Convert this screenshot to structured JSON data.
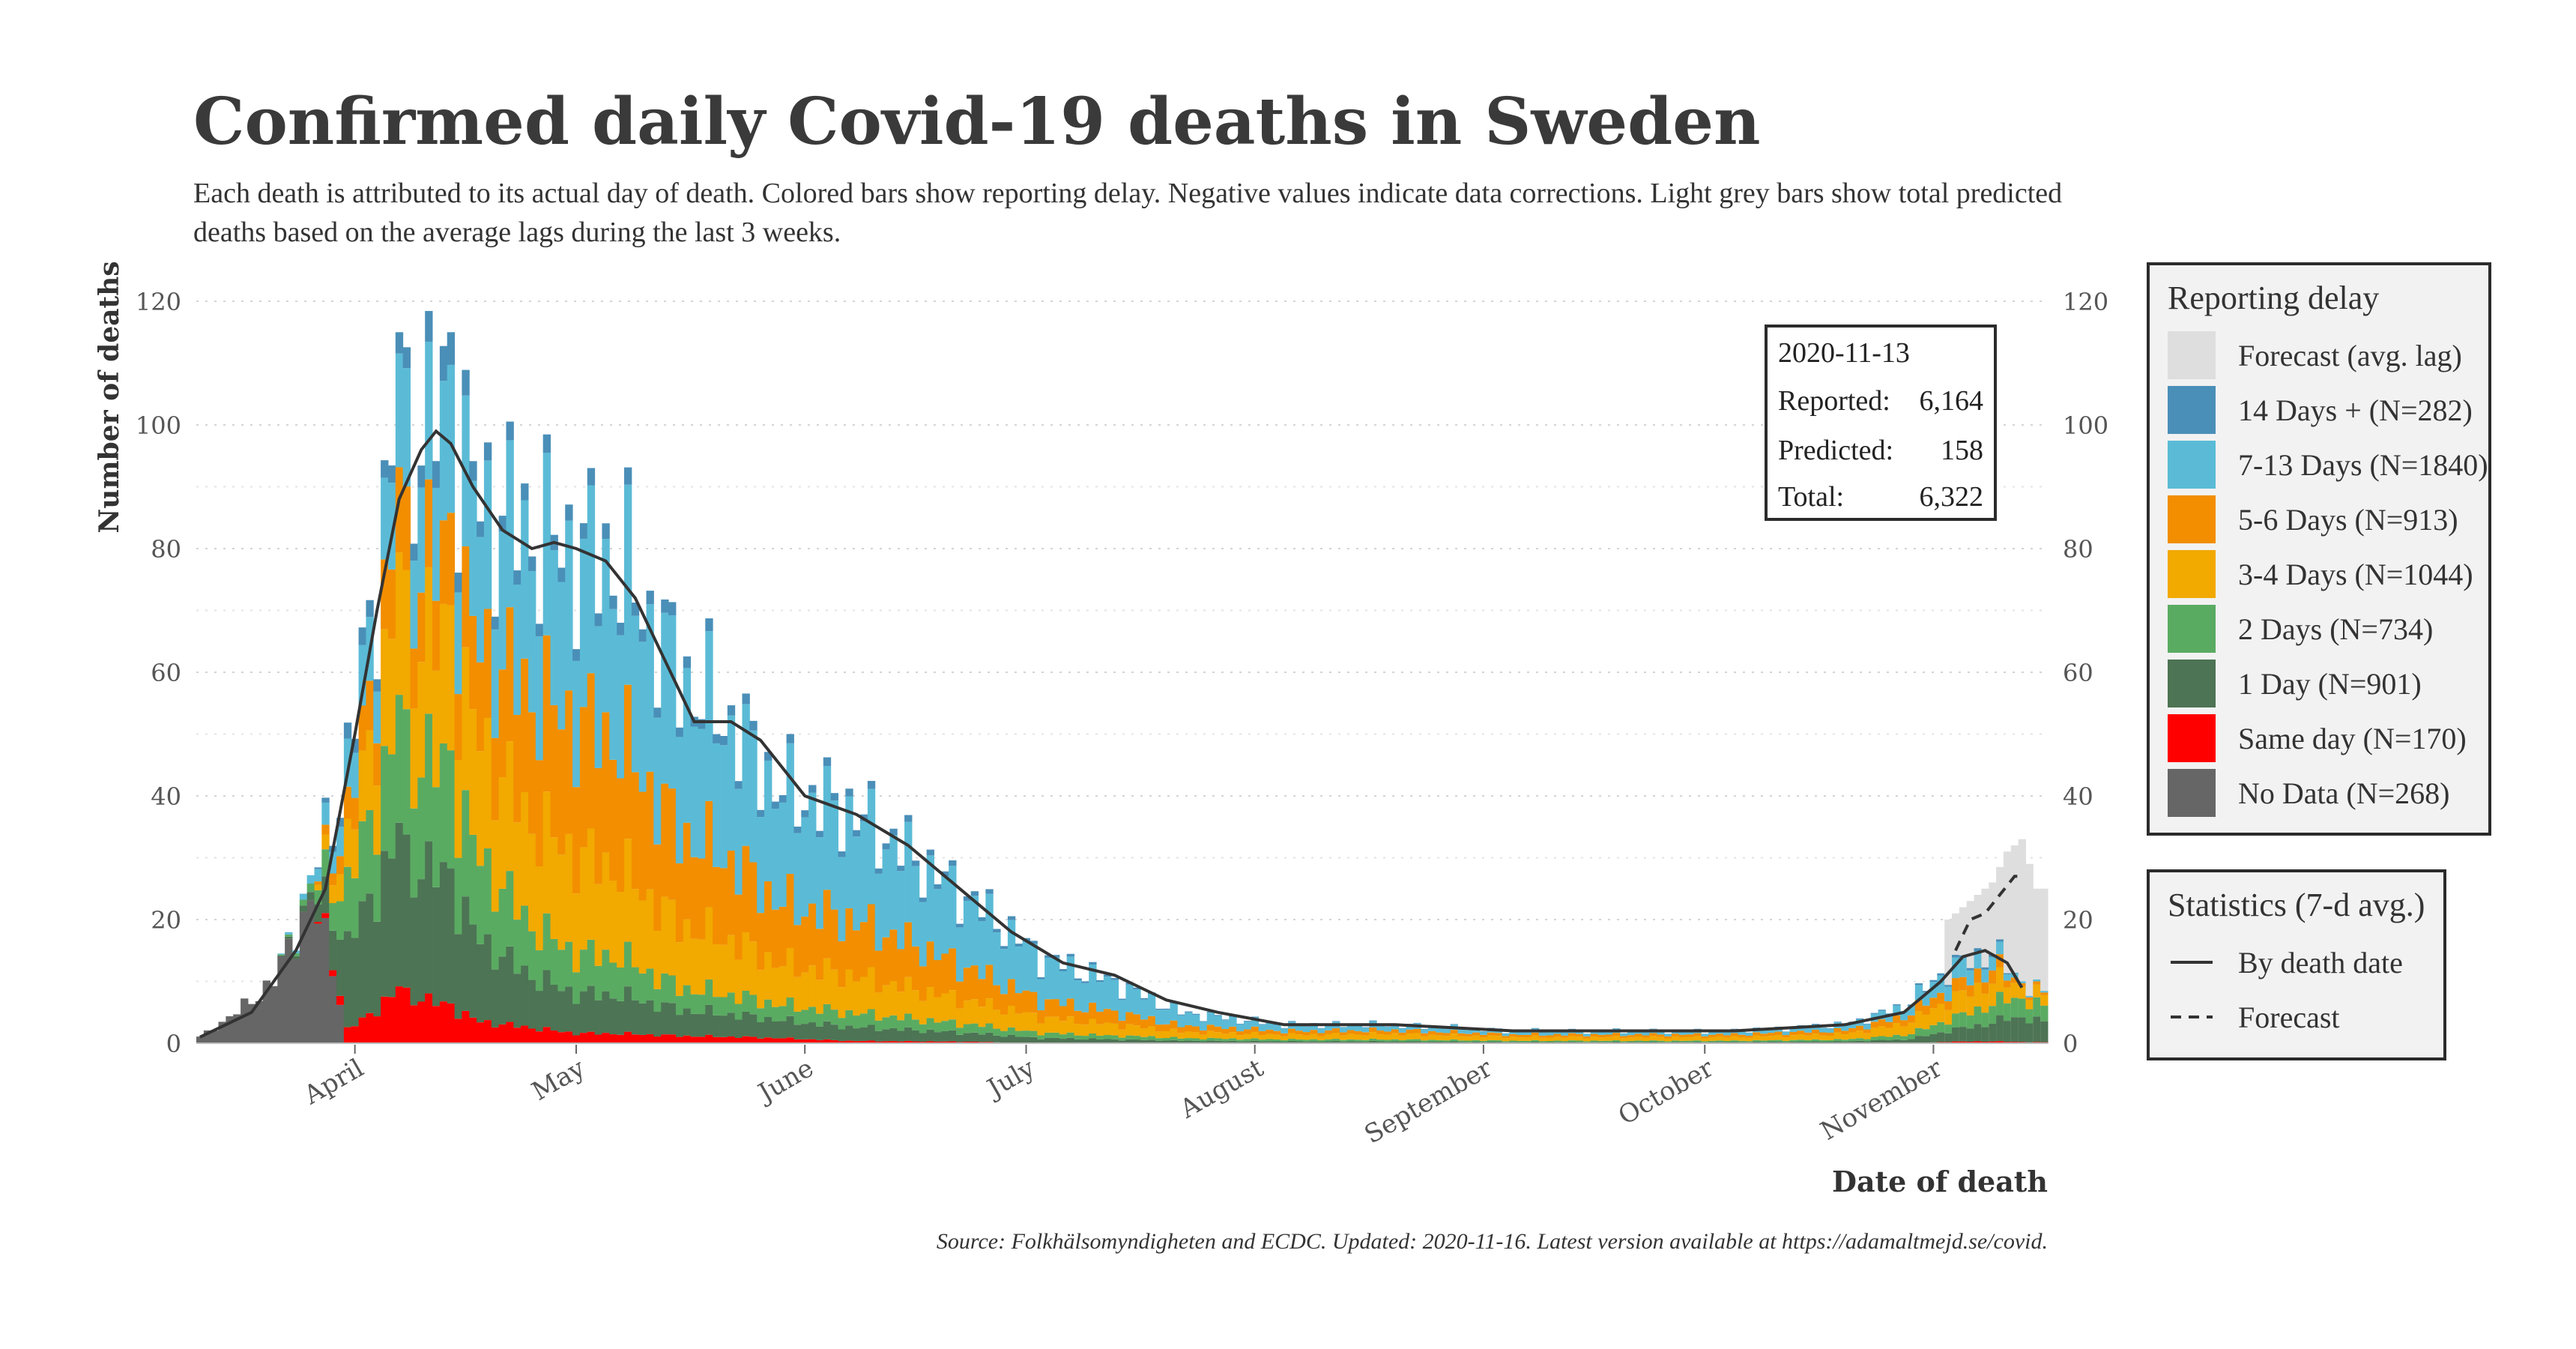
{
  "title": "Confirmed daily Covid-19 deaths in Sweden",
  "subtitle": "Each death is attributed to its actual day of death. Colored bars show reporting delay. Negative values indicate data corrections. Light grey bars show total predicted deaths based on the average lags during the last 3 weeks.",
  "source": "Source: Folkhälsomyndigheten and ECDC. Updated: 2020-11-16. Latest version available at https://adamaltmejd.se/covid.",
  "info_box": {
    "date": "2020-11-13",
    "reported_label": "Reported:",
    "reported_value": "6,164",
    "predicted_label": "Predicted:",
    "predicted_value": "158",
    "total_label": "Total:",
    "total_value": "6,322"
  },
  "legend_delay": {
    "title": "Reporting delay",
    "items": [
      {
        "label": "Forecast (avg. lag)",
        "color": "#dedede"
      },
      {
        "label": "14 Days + (N=282)",
        "color": "#4a8fb8"
      },
      {
        "label": "7-13 Days (N=1840)",
        "color": "#5bbbd6"
      },
      {
        "label": "5-6 Days (N=913)",
        "color": "#f28e00"
      },
      {
        "label": "3-4 Days (N=1044)",
        "color": "#f2a900"
      },
      {
        "label": "2 Days (N=734)",
        "color": "#5aab62"
      },
      {
        "label": "1 Day (N=901)",
        "color": "#4d7454"
      },
      {
        "label": "Same day (N=170)",
        "color": "#ff0000"
      },
      {
        "label": "No Data (N=268)",
        "color": "#666666"
      }
    ]
  },
  "legend_stats": {
    "title": "Statistics (7-d avg.)",
    "items": [
      {
        "label": "By death date",
        "style": "solid"
      },
      {
        "label": "Forecast",
        "style": "dashed"
      }
    ]
  },
  "chart_data": {
    "type": "bar",
    "title": "Confirmed daily Covid-19 deaths in Sweden",
    "xlabel": "Date of death",
    "ylabel": "Number of deaths",
    "ylim": [
      0,
      120
    ],
    "yticks": [
      0,
      20,
      40,
      60,
      80,
      100,
      120
    ],
    "x_start": "2020-03-11",
    "x_end": "2020-11-16",
    "x_ticks": [
      {
        "label": "April",
        "date": "2020-04-01"
      },
      {
        "label": "May",
        "date": "2020-05-01"
      },
      {
        "label": "June",
        "date": "2020-06-01"
      },
      {
        "label": "July",
        "date": "2020-07-01"
      },
      {
        "label": "August",
        "date": "2020-08-01"
      },
      {
        "label": "September",
        "date": "2020-09-01"
      },
      {
        "label": "October",
        "date": "2020-10-01"
      },
      {
        "label": "November",
        "date": "2020-11-01"
      }
    ],
    "series_order": [
      "No Data",
      "Same day",
      "1 Day",
      "2 Days",
      "3-4 Days",
      "5-6 Days",
      "7-13 Days",
      "14 Days +",
      "Forecast (avg. lag)"
    ],
    "series_colors": [
      "#666666",
      "#ff0000",
      "#4d7454",
      "#5aab62",
      "#f2a900",
      "#f28e00",
      "#5bbbd6",
      "#4a8fb8",
      "#dedede"
    ],
    "anchors": [
      {
        "date": "2020-03-11",
        "total": 1,
        "mix": [
          1,
          0,
          0,
          0,
          0,
          0,
          0,
          0
        ]
      },
      {
        "date": "2020-03-16",
        "total": 5,
        "mix": [
          1,
          0,
          0,
          0,
          0,
          0,
          0,
          0
        ]
      },
      {
        "date": "2020-03-21",
        "total": 10,
        "mix": [
          1,
          0,
          0,
          0,
          0,
          0,
          0,
          0
        ]
      },
      {
        "date": "2020-03-26",
        "total": 26,
        "mix": [
          0.85,
          0,
          0.05,
          0.05,
          0,
          0,
          0.05,
          0
        ]
      },
      {
        "date": "2020-03-31",
        "total": 45,
        "mix": [
          0,
          0.05,
          0.3,
          0.2,
          0.15,
          0.1,
          0.15,
          0.05
        ]
      },
      {
        "date": "2020-04-05",
        "total": 85,
        "mix": [
          0,
          0.08,
          0.25,
          0.18,
          0.2,
          0.12,
          0.14,
          0.03
        ]
      },
      {
        "date": "2020-04-08",
        "total": 98,
        "mix": [
          0,
          0.08,
          0.22,
          0.18,
          0.2,
          0.12,
          0.17,
          0.03
        ]
      },
      {
        "date": "2020-04-13",
        "total": 103,
        "mix": [
          0,
          0.06,
          0.2,
          0.17,
          0.2,
          0.12,
          0.2,
          0.05
        ]
      },
      {
        "date": "2020-04-18",
        "total": 88,
        "mix": [
          0,
          0.04,
          0.15,
          0.15,
          0.22,
          0.17,
          0.24,
          0.03
        ]
      },
      {
        "date": "2020-04-25",
        "total": 83,
        "mix": [
          0,
          0.03,
          0.1,
          0.1,
          0.2,
          0.25,
          0.29,
          0.03
        ]
      },
      {
        "date": "2020-05-01",
        "total": 80,
        "mix": [
          0,
          0.02,
          0.08,
          0.08,
          0.2,
          0.27,
          0.32,
          0.03
        ]
      },
      {
        "date": "2020-05-07",
        "total": 78,
        "mix": [
          0,
          0.02,
          0.08,
          0.08,
          0.18,
          0.27,
          0.34,
          0.03
        ]
      },
      {
        "date": "2020-05-15",
        "total": 60,
        "mix": [
          0,
          0.02,
          0.07,
          0.06,
          0.17,
          0.25,
          0.4,
          0.03
        ]
      },
      {
        "date": "2020-05-22",
        "total": 52,
        "mix": [
          0,
          0.02,
          0.07,
          0.06,
          0.17,
          0.25,
          0.4,
          0.03
        ]
      },
      {
        "date": "2020-05-29",
        "total": 41,
        "mix": [
          0,
          0.02,
          0.07,
          0.06,
          0.16,
          0.24,
          0.42,
          0.03
        ]
      },
      {
        "date": "2020-06-07",
        "total": 38,
        "mix": [
          0,
          0.01,
          0.06,
          0.06,
          0.16,
          0.24,
          0.44,
          0.03
        ]
      },
      {
        "date": "2020-06-16",
        "total": 30,
        "mix": [
          0,
          0.01,
          0.06,
          0.06,
          0.16,
          0.24,
          0.44,
          0.03
        ]
      },
      {
        "date": "2020-06-25",
        "total": 22,
        "mix": [
          0,
          0.01,
          0.06,
          0.06,
          0.16,
          0.22,
          0.46,
          0.03
        ]
      },
      {
        "date": "2020-07-03",
        "total": 14,
        "mix": [
          0,
          0,
          0.06,
          0.06,
          0.18,
          0.2,
          0.47,
          0.03
        ]
      },
      {
        "date": "2020-07-13",
        "total": 10,
        "mix": [
          0,
          0,
          0.06,
          0.06,
          0.18,
          0.2,
          0.47,
          0.03
        ]
      },
      {
        "date": "2020-07-22",
        "total": 5,
        "mix": [
          0,
          0,
          0.08,
          0.08,
          0.2,
          0.2,
          0.41,
          0.03
        ]
      },
      {
        "date": "2020-08-05",
        "total": 3,
        "mix": [
          0,
          0,
          0.1,
          0.1,
          0.25,
          0.2,
          0.32,
          0.03
        ]
      },
      {
        "date": "2020-08-20",
        "total": 3,
        "mix": [
          0,
          0,
          0.1,
          0.1,
          0.3,
          0.2,
          0.27,
          0.03
        ]
      },
      {
        "date": "2020-09-05",
        "total": 2,
        "mix": [
          0,
          0,
          0.1,
          0.1,
          0.3,
          0.2,
          0.27,
          0.03
        ]
      },
      {
        "date": "2020-09-20",
        "total": 2,
        "mix": [
          0,
          0,
          0.1,
          0.1,
          0.3,
          0.2,
          0.27,
          0.03
        ]
      },
      {
        "date": "2020-10-05",
        "total": 2,
        "mix": [
          0,
          0,
          0.1,
          0.1,
          0.3,
          0.2,
          0.27,
          0.03
        ]
      },
      {
        "date": "2020-10-20",
        "total": 3,
        "mix": [
          0,
          0,
          0.1,
          0.1,
          0.3,
          0.2,
          0.27,
          0.03
        ]
      },
      {
        "date": "2020-10-28",
        "total": 6,
        "mix": [
          0,
          0,
          0.1,
          0.12,
          0.3,
          0.2,
          0.25,
          0.03
        ]
      },
      {
        "date": "2020-11-03",
        "total": 12,
        "mix": [
          0,
          0.02,
          0.15,
          0.15,
          0.25,
          0.15,
          0.25,
          0.03
        ]
      },
      {
        "date": "2020-11-09",
        "total": 15,
        "mix": [
          0,
          0.02,
          0.2,
          0.2,
          0.25,
          0.15,
          0.15,
          0.03
        ]
      },
      {
        "date": "2020-11-13",
        "total": 10,
        "mix": [
          0,
          0.02,
          0.4,
          0.3,
          0.2,
          0.05,
          0.03,
          0
        ]
      },
      {
        "date": "2020-11-16",
        "total": 8,
        "mix": [
          0,
          0.02,
          0.4,
          0.3,
          0.2,
          0.05,
          0.03,
          0
        ]
      }
    ],
    "peaks": [
      {
        "date": "2020-04-07",
        "total": 115
      },
      {
        "date": "2020-04-14",
        "total": 115
      }
    ],
    "forecast": [
      {
        "date": "2020-11-03",
        "predicted": 20
      },
      {
        "date": "2020-11-05",
        "predicted": 22
      },
      {
        "date": "2020-11-07",
        "predicted": 24
      },
      {
        "date": "2020-11-09",
        "predicted": 26
      },
      {
        "date": "2020-11-11",
        "predicted": 31
      },
      {
        "date": "2020-11-13",
        "predicted": 33
      },
      {
        "date": "2020-11-15",
        "predicted": 25
      },
      {
        "date": "2020-11-16",
        "predicted": 25
      }
    ],
    "avg_death_date": [
      {
        "date": "2020-03-11",
        "value": 1
      },
      {
        "date": "2020-03-18",
        "value": 5
      },
      {
        "date": "2020-03-24",
        "value": 15
      },
      {
        "date": "2020-03-28",
        "value": 25
      },
      {
        "date": "2020-04-01",
        "value": 50
      },
      {
        "date": "2020-04-04",
        "value": 70
      },
      {
        "date": "2020-04-07",
        "value": 88
      },
      {
        "date": "2020-04-10",
        "value": 96
      },
      {
        "date": "2020-04-12",
        "value": 99
      },
      {
        "date": "2020-04-14",
        "value": 97
      },
      {
        "date": "2020-04-17",
        "value": 90
      },
      {
        "date": "2020-04-21",
        "value": 83
      },
      {
        "date": "2020-04-25",
        "value": 80
      },
      {
        "date": "2020-04-28",
        "value": 81
      },
      {
        "date": "2020-05-01",
        "value": 80
      },
      {
        "date": "2020-05-05",
        "value": 78
      },
      {
        "date": "2020-05-09",
        "value": 72
      },
      {
        "date": "2020-05-13",
        "value": 62
      },
      {
        "date": "2020-05-17",
        "value": 52
      },
      {
        "date": "2020-05-22",
        "value": 52
      },
      {
        "date": "2020-05-26",
        "value": 49
      },
      {
        "date": "2020-06-01",
        "value": 40
      },
      {
        "date": "2020-06-08",
        "value": 37
      },
      {
        "date": "2020-06-15",
        "value": 32
      },
      {
        "date": "2020-06-22",
        "value": 25
      },
      {
        "date": "2020-06-29",
        "value": 18
      },
      {
        "date": "2020-07-06",
        "value": 13
      },
      {
        "date": "2020-07-13",
        "value": 11
      },
      {
        "date": "2020-07-20",
        "value": 7
      },
      {
        "date": "2020-07-27",
        "value": 5
      },
      {
        "date": "2020-08-05",
        "value": 3
      },
      {
        "date": "2020-08-20",
        "value": 3
      },
      {
        "date": "2020-09-05",
        "value": 2
      },
      {
        "date": "2020-09-20",
        "value": 2
      },
      {
        "date": "2020-10-05",
        "value": 2
      },
      {
        "date": "2020-10-20",
        "value": 3
      },
      {
        "date": "2020-10-28",
        "value": 5
      },
      {
        "date": "2020-11-02",
        "value": 10
      },
      {
        "date": "2020-11-05",
        "value": 14
      },
      {
        "date": "2020-11-08",
        "value": 15
      },
      {
        "date": "2020-11-11",
        "value": 13
      },
      {
        "date": "2020-11-13",
        "value": 9
      }
    ],
    "avg_forecast": [
      {
        "date": "2020-11-04",
        "value": 15
      },
      {
        "date": "2020-11-06",
        "value": 20
      },
      {
        "date": "2020-11-08",
        "value": 21
      },
      {
        "date": "2020-11-10",
        "value": 24
      },
      {
        "date": "2020-11-12",
        "value": 27
      },
      {
        "date": "2020-11-13",
        "value": 27
      }
    ]
  }
}
